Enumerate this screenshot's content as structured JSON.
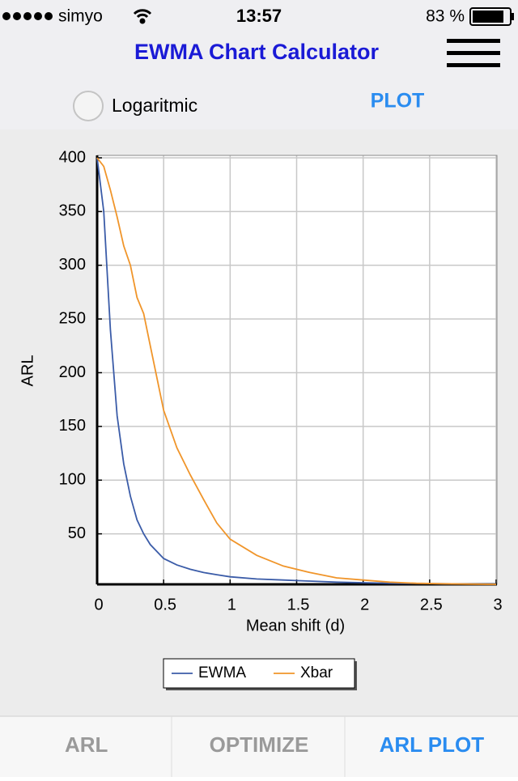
{
  "status_bar": {
    "carrier": "simyo",
    "time": "13:57",
    "battery": "83 %"
  },
  "header": {
    "title": "EWMA Chart Calculator"
  },
  "controls": {
    "log_option": "Logaritmic",
    "log_checked": false,
    "plot_button": "PLOT"
  },
  "chart_data": {
    "type": "line",
    "x": [
      0,
      0.05,
      0.1,
      0.15,
      0.2,
      0.25,
      0.3,
      0.35,
      0.4,
      0.5,
      0.6,
      0.7,
      0.8,
      0.9,
      1,
      1.2,
      1.4,
      1.6,
      1.8,
      2,
      2.2,
      2.4,
      2.6,
      2.8,
      3
    ],
    "series": [
      {
        "name": "EWMA",
        "color": "#3b5ca8",
        "values": [
          400,
          350,
          240,
          160,
          115,
          85,
          63,
          50,
          40,
          27,
          21,
          17,
          14,
          12,
          10,
          8,
          7,
          6,
          5,
          4.5,
          4,
          3.8,
          3.5,
          3.3,
          3.2
        ]
      },
      {
        "name": "Xbar",
        "color": "#f0952a",
        "values": [
          400,
          392,
          370,
          345,
          318,
          300,
          270,
          255,
          225,
          165,
          130,
          105,
          82,
          60,
          45,
          30,
          20,
          14,
          9,
          7,
          5,
          4,
          3.5,
          3.2,
          3
        ]
      }
    ],
    "x_label": "Mean shift (d)",
    "y_label": "ARL",
    "xlim": [
      0,
      3
    ],
    "ylim": [
      3,
      400
    ],
    "xticks": [
      0,
      0.5,
      1,
      1.5,
      2,
      2.5,
      3
    ],
    "yticks": [
      50,
      100,
      150,
      200,
      250,
      300,
      350,
      400
    ],
    "grid": true,
    "log_scale": false
  },
  "tabs": [
    {
      "label": "ARL",
      "selected": false
    },
    {
      "label": "OPTIMIZE",
      "selected": false
    },
    {
      "label": "ARL PLOT",
      "selected": true
    }
  ]
}
